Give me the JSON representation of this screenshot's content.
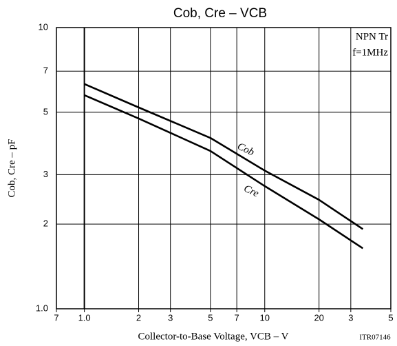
{
  "chart_data": {
    "type": "line",
    "title": "Cob, Cre  –  VCB",
    "x_label": "Collector-to-Base Voltage, VCB  –  V",
    "y_label": "Cob, Cre  –  pF",
    "annotations": [
      "NPN Tr",
      "f=1MHz",
      "ITR07146"
    ],
    "x": [
      1,
      2,
      5,
      10,
      20,
      35
    ],
    "series": [
      {
        "name": "Cob",
        "color": "#000000",
        "values": [
          6.3,
          5.2,
          4.05,
          3.1,
          2.44,
          1.92
        ]
      },
      {
        "name": "Cre",
        "color": "#000000",
        "values": [
          5.75,
          4.75,
          3.64,
          2.73,
          2.08,
          1.64
        ]
      }
    ],
    "xlim": [
      0.7,
      50
    ],
    "ylim": [
      1,
      10
    ],
    "xticks": [
      {
        "value": 0.7,
        "label": "7"
      },
      {
        "value": 1,
        "label": "1.0"
      },
      2,
      3,
      5,
      7,
      10,
      20,
      {
        "value": 30,
        "label": "3"
      },
      {
        "value": 50,
        "label": "5"
      }
    ],
    "yticks": [
      {
        "value": 1,
        "label": "1.0"
      },
      2,
      3,
      5,
      7,
      10
    ],
    "xscale": "log",
    "yscale": "log",
    "grid": true
  }
}
